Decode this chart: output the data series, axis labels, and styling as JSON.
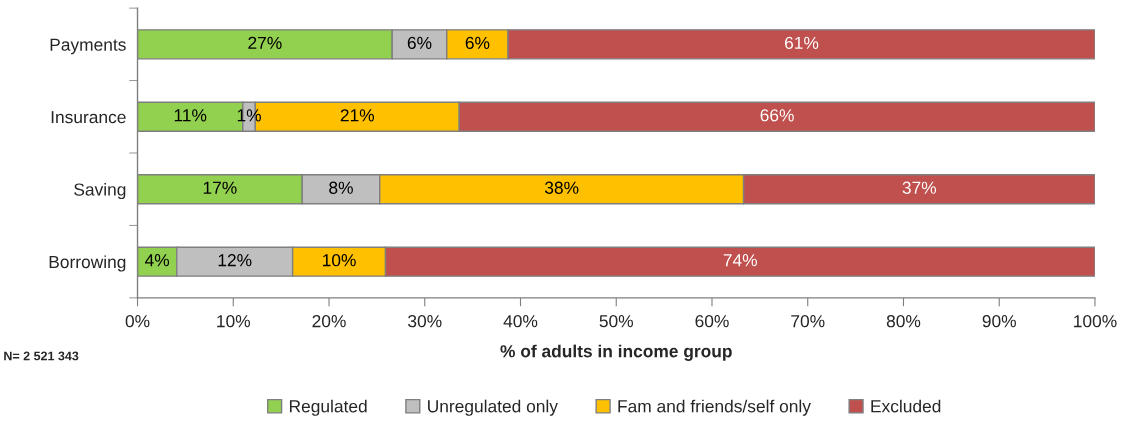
{
  "chart_data": {
    "type": "bar",
    "orientation": "horizontal",
    "stacked": true,
    "categories": [
      "Payments",
      "Insurance",
      "Saving",
      "Borrowing"
    ],
    "series": [
      {
        "name": "Regulated",
        "color": "#92d050",
        "values": [
          26.6,
          11.0,
          17.2,
          4.1
        ],
        "value_labels": [
          "27%",
          "11%",
          "17%",
          "4%"
        ]
      },
      {
        "name": "Unregulated only",
        "color": "#bfbfbf",
        "values": [
          5.7,
          1.3,
          8.1,
          12.1
        ],
        "value_labels": [
          "6%",
          "1%",
          "8%",
          "12%"
        ]
      },
      {
        "name": "Fam and friends/self only",
        "color": "#ffc000",
        "values": [
          6.4,
          21.3,
          38.0,
          9.7
        ],
        "value_labels": [
          "6%",
          "21%",
          "38%",
          "10%"
        ]
      },
      {
        "name": "Excluded",
        "color": "#c0504d",
        "values": [
          61.3,
          66.4,
          36.7,
          74.1
        ],
        "value_labels": [
          "61%",
          "66%",
          "37%",
          "74%"
        ]
      }
    ],
    "xlim": [
      0,
      100
    ],
    "xticks": [
      {
        "value": 0,
        "label": "0%"
      },
      {
        "value": 10,
        "label": "10%"
      },
      {
        "value": 20,
        "label": "20%"
      },
      {
        "value": 30,
        "label": "30%"
      },
      {
        "value": 40,
        "label": "40%"
      },
      {
        "value": 50,
        "label": "50%"
      },
      {
        "value": 60,
        "label": "60%"
      },
      {
        "value": 70,
        "label": "70%"
      },
      {
        "value": 80,
        "label": "80%"
      },
      {
        "value": 90,
        "label": "90%"
      },
      {
        "value": 100,
        "label": "100%"
      }
    ],
    "xlabel": "% of adults in income group",
    "legend": "bottom",
    "annotations": [
      "N= 2 521 343"
    ]
  }
}
